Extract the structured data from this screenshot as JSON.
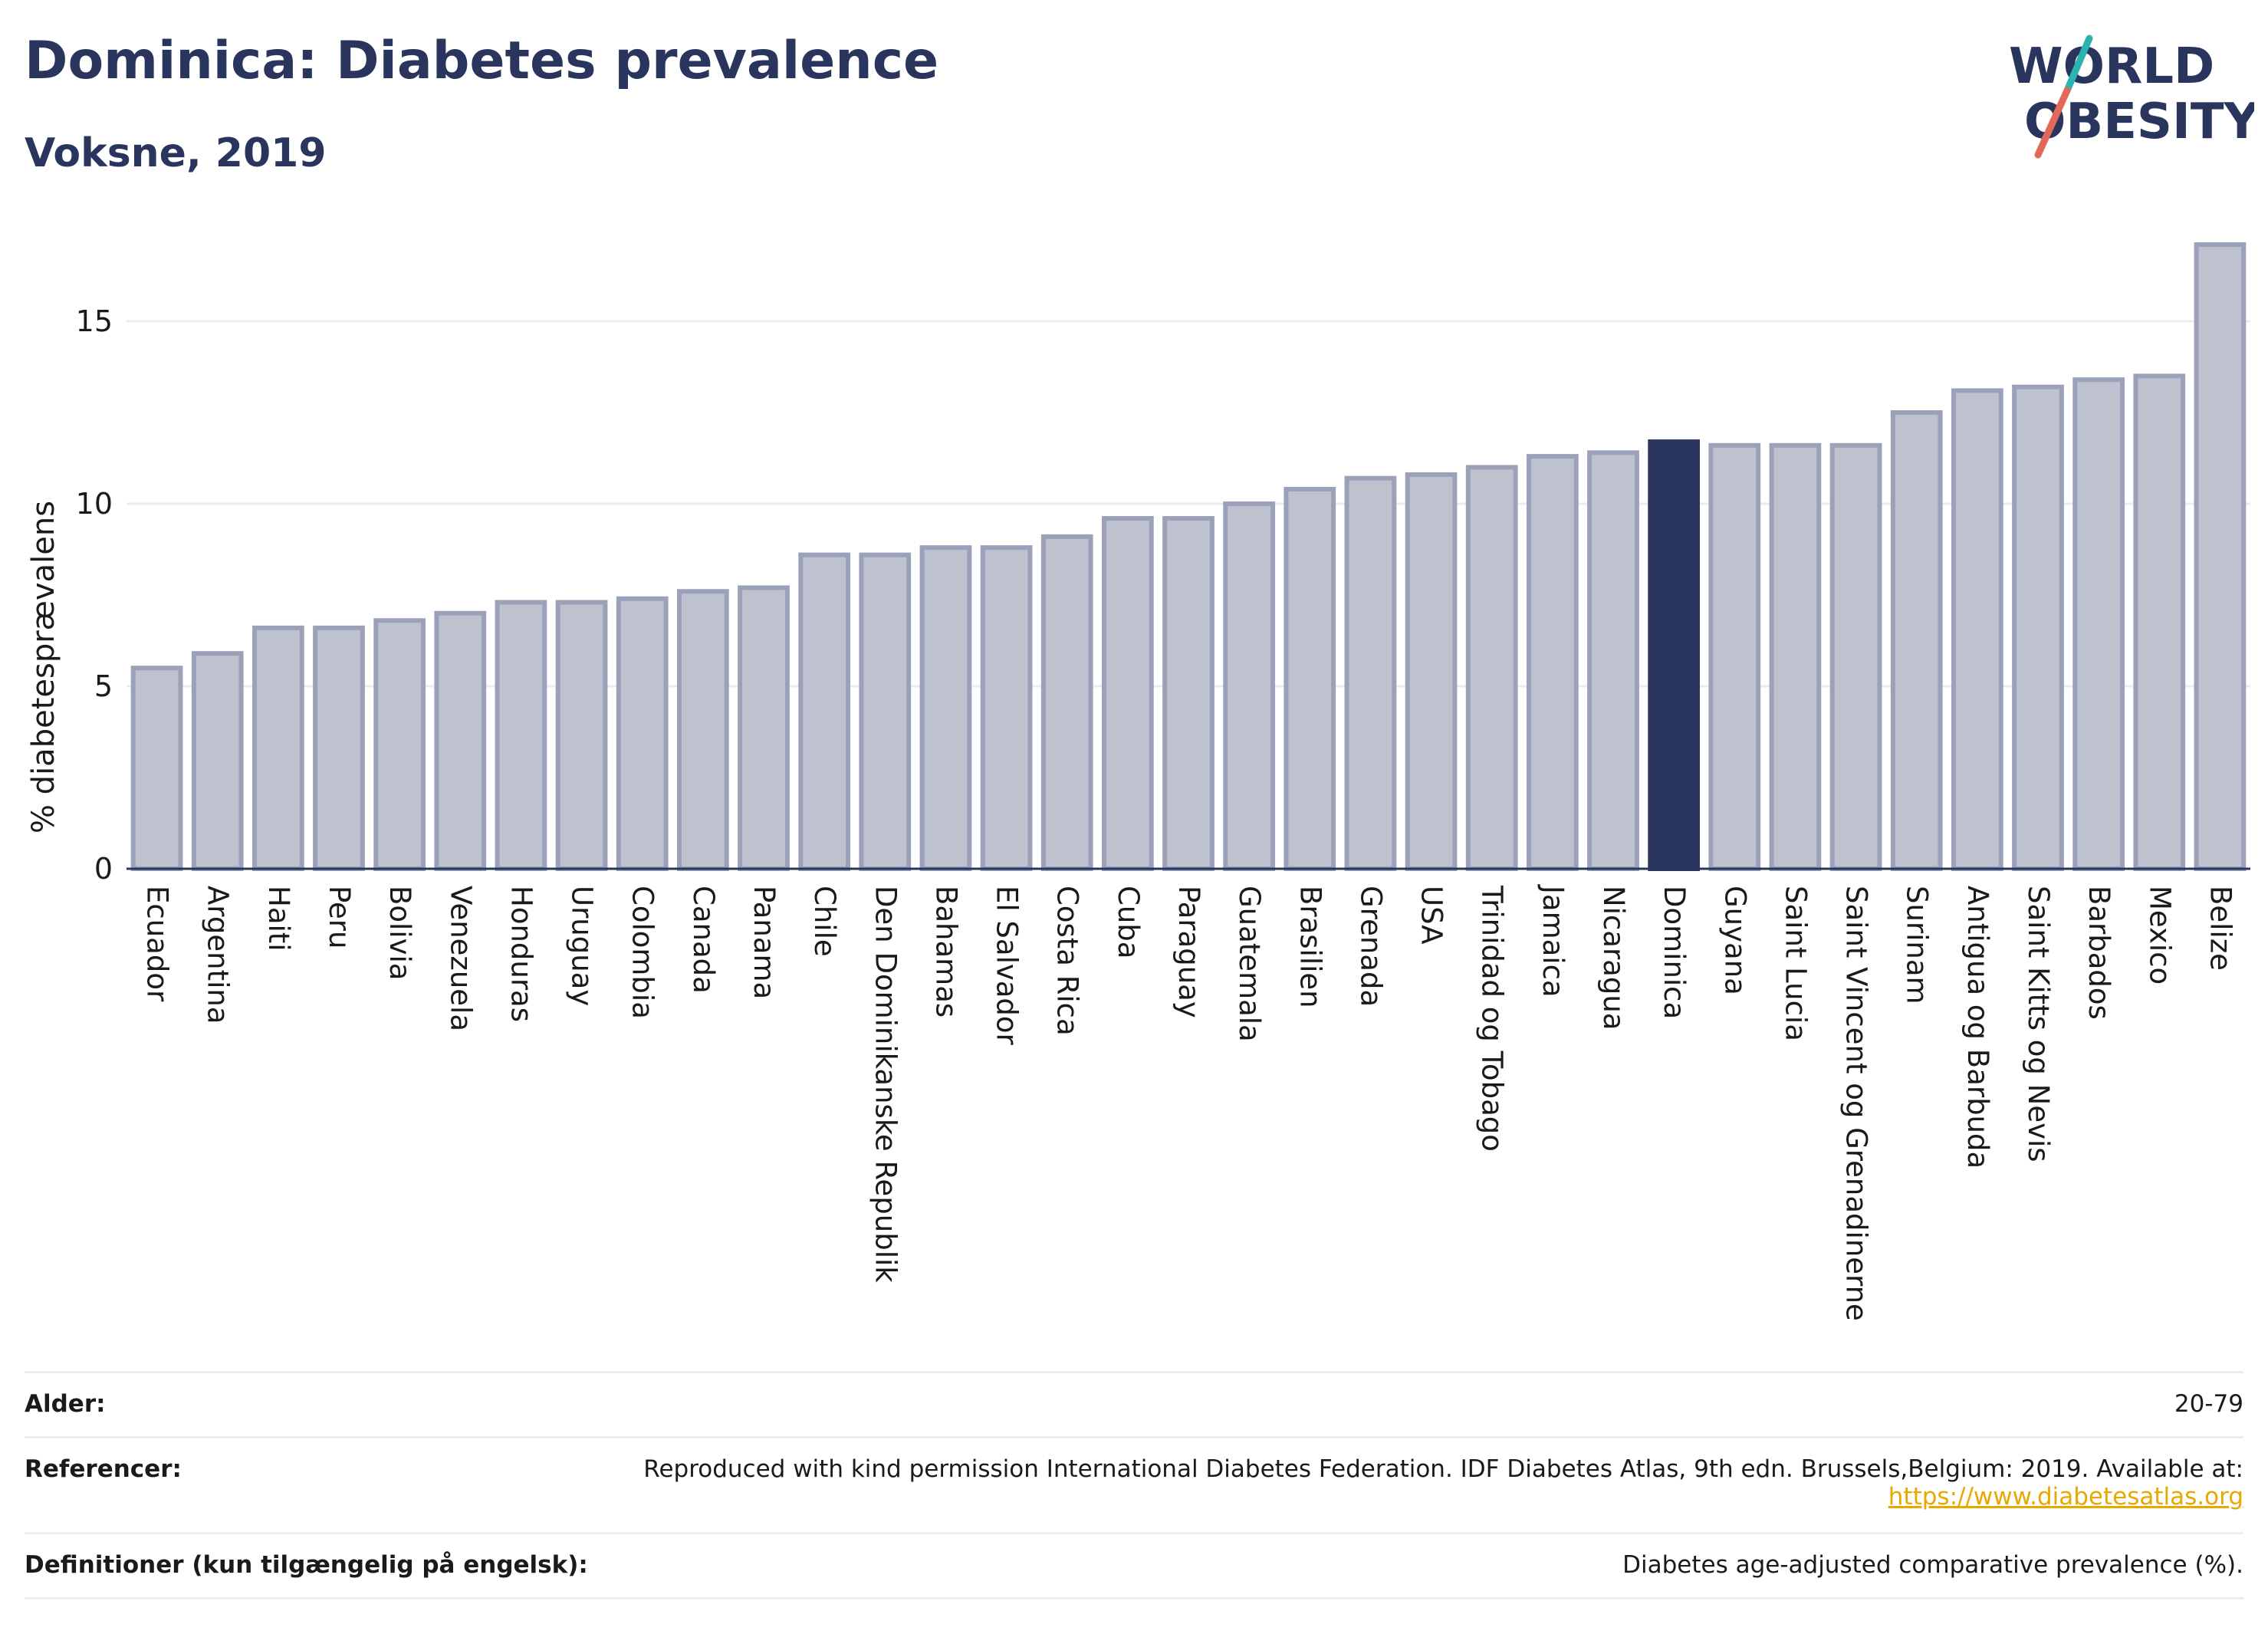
{
  "header": {
    "title": "Dominica: Diabetes prevalence",
    "subtitle": "Voksne, 2019"
  },
  "logo": {
    "line1": "WORLD",
    "line2": "OBESITY"
  },
  "colors": {
    "highlight": "#2a355e",
    "bar": "#bec2cf",
    "bar_border": "#9aa1b8",
    "title": "#2a355e",
    "link": "#e8a800"
  },
  "chart_data": {
    "type": "bar",
    "ylabel": "% diabetesprævalens",
    "ylim": [
      0,
      17.5
    ],
    "yticks": [
      0,
      5,
      10,
      15
    ],
    "grid": true,
    "highlight": "Dominica",
    "categories": [
      "Ecuador",
      "Argentina",
      "Haiti",
      "Peru",
      "Bolivia",
      "Venezuela",
      "Honduras",
      "Uruguay",
      "Colombia",
      "Canada",
      "Panama",
      "Chile",
      "Den Dominikanske Republik",
      "Bahamas",
      "El Salvador",
      "Costa Rica",
      "Cuba",
      "Paraguay",
      "Guatemala",
      "Brasilien",
      "Grenada",
      "USA",
      "Trinidad og Tobago",
      "Jamaica",
      "Nicaragua",
      "Dominica",
      "Guyana",
      "Saint Lucia",
      "Saint Vincent og Grenadinerne",
      "Surinam",
      "Antigua og Barbuda",
      "Saint Kitts og Nevis",
      "Barbados",
      "Mexico",
      "Belize"
    ],
    "values": [
      5.5,
      5.9,
      6.6,
      6.6,
      6.8,
      7.0,
      7.3,
      7.3,
      7.4,
      7.6,
      7.7,
      8.6,
      8.6,
      8.8,
      8.8,
      9.1,
      9.6,
      9.6,
      10.0,
      10.4,
      10.7,
      10.8,
      11.0,
      11.3,
      11.4,
      11.7,
      11.6,
      11.6,
      11.6,
      12.5,
      13.1,
      13.2,
      13.4,
      13.5,
      17.1
    ]
  },
  "footer": {
    "age_label": "Alder:",
    "age_value": "20-79",
    "ref_label": "Referencer:",
    "ref_text": "Reproduced with kind permission International Diabetes Federation. IDF Diabetes Atlas, 9th edn. Brussels,Belgium: 2019. Available at:",
    "ref_link": "https://www.diabetesatlas.org",
    "def_label": "Definitioner (kun tilgængelig på engelsk):",
    "def_value": "Diabetes age-adjusted comparative prevalence (%)."
  }
}
